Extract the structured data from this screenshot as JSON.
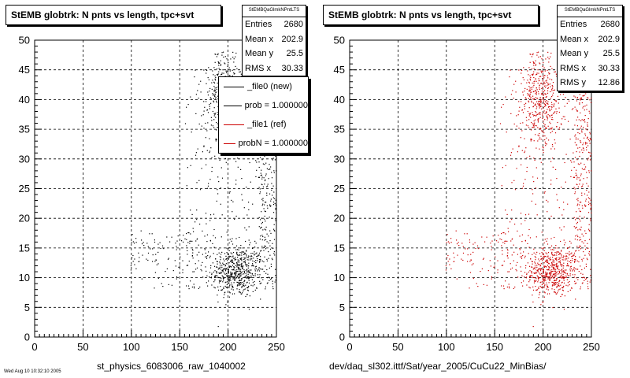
{
  "chart_data": [
    {
      "type": "scatter",
      "title": "StEMB globtrk: N pnts vs length, tpc+svt",
      "xlabel": "st_physics_6083006_raw_1040002",
      "ylabel": "",
      "xlim": [
        0,
        250
      ],
      "ylim": [
        0,
        50
      ],
      "xticks": [
        "0",
        "50",
        "100",
        "150",
        "200",
        "250"
      ],
      "yticks": [
        "0",
        "5",
        "10",
        "15",
        "20",
        "25",
        "30",
        "35",
        "40",
        "45",
        "50"
      ],
      "grid": true,
      "marker_color": "#000000",
      "stats": {
        "name": "StEMBQaGlmkNPntLTS",
        "rows": [
          {
            "label": "Entries",
            "value": "2680"
          },
          {
            "label": "Mean x",
            "value": "202.9"
          },
          {
            "label": "Mean y",
            "value": "25.5"
          },
          {
            "label": "RMS x",
            "value": "30.33"
          }
        ]
      },
      "legend": {
        "placement": "top-right",
        "entries": [
          {
            "label": "_file0 (new)",
            "color": "#000000"
          },
          {
            "label": "prob = 1.000000",
            "color": "#000000"
          },
          {
            "label": "_file1 (ref)",
            "color": "#cc0000"
          },
          {
            "label": "probN = 1.000000",
            "color": "#cc0000"
          }
        ]
      },
      "footer": "Wed Aug 10 10:32:10 2005"
    },
    {
      "type": "scatter",
      "title": "StEMB globtrk: N pnts vs length, tpc+svt",
      "xlabel": "dev/daq_sl302.ittf/Sat/year_2005/CuCu22_MinBias/",
      "ylabel": "",
      "xlim": [
        0,
        250
      ],
      "ylim": [
        0,
        50
      ],
      "xticks": [
        "0",
        "50",
        "100",
        "150",
        "200",
        "250"
      ],
      "yticks": [
        "0",
        "5",
        "10",
        "15",
        "20",
        "25",
        "30",
        "35",
        "40",
        "45",
        "50"
      ],
      "grid": true,
      "marker_color": "#cc0000",
      "stats": {
        "name": "StEMBQaGlmkNPntLTS",
        "rows": [
          {
            "label": "Entries",
            "value": "2680"
          },
          {
            "label": "Mean x",
            "value": "202.9"
          },
          {
            "label": "Mean y",
            "value": "25.5"
          },
          {
            "label": "RMS x",
            "value": "30.33"
          },
          {
            "label": "RMS y",
            "value": "12.86"
          }
        ]
      }
    }
  ]
}
